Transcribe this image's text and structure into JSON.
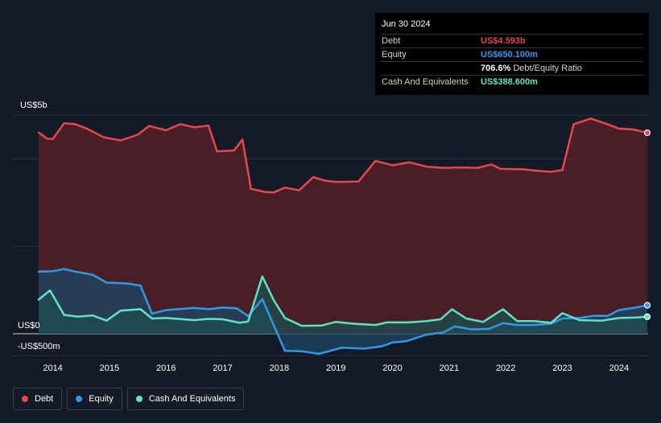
{
  "tooltip": {
    "date": "Jun 30 2024",
    "rows": [
      {
        "label": "Debt",
        "value": "US$4.593b",
        "color": "#e5484d"
      },
      {
        "label": "Equity",
        "value": "US$650.100m",
        "color": "#2f9ae8"
      },
      {
        "label": "",
        "value": "706.6%",
        "suffix": "Debt/Equity Ratio",
        "color": "#ffffff"
      },
      {
        "label": "Cash And Equivalents",
        "value": "US$388.600m",
        "color": "#5fe3c6"
      }
    ]
  },
  "legend": [
    {
      "label": "Debt",
      "color": "#e5484d"
    },
    {
      "label": "Equity",
      "color": "#2f9ae8"
    },
    {
      "label": "Cash And Equivalents",
      "color": "#5fe3c6"
    }
  ],
  "chart_data": {
    "type": "area",
    "x_ticks": [
      "2014",
      "2015",
      "2016",
      "2017",
      "2018",
      "2019",
      "2020",
      "2021",
      "2022",
      "2023",
      "2024"
    ],
    "y_tick_labels": [
      {
        "value": 5000,
        "label": "US$5b"
      },
      {
        "value": 0,
        "label": "US$0"
      },
      {
        "value": -500,
        "label": "-US$500m"
      }
    ],
    "ylim": [
      -500,
      5000
    ],
    "gridlines": [
      5000,
      4000,
      2000,
      0,
      -500
    ],
    "series": [
      {
        "name": "Debt",
        "color": "#e5484d",
        "fill": "#5a2227",
        "points": [
          [
            2013.75,
            4600
          ],
          [
            2013.9,
            4460
          ],
          [
            2014.0,
            4450
          ],
          [
            2014.2,
            4810
          ],
          [
            2014.4,
            4790
          ],
          [
            2014.6,
            4690
          ],
          [
            2014.9,
            4490
          ],
          [
            2015.2,
            4420
          ],
          [
            2015.5,
            4550
          ],
          [
            2015.7,
            4750
          ],
          [
            2016.0,
            4650
          ],
          [
            2016.25,
            4790
          ],
          [
            2016.5,
            4720
          ],
          [
            2016.75,
            4760
          ],
          [
            2016.9,
            4170
          ],
          [
            2017.2,
            4190
          ],
          [
            2017.35,
            4440
          ],
          [
            2017.5,
            3310
          ],
          [
            2017.75,
            3240
          ],
          [
            2017.9,
            3230
          ],
          [
            2018.1,
            3340
          ],
          [
            2018.35,
            3280
          ],
          [
            2018.6,
            3580
          ],
          [
            2018.8,
            3500
          ],
          [
            2019.0,
            3470
          ],
          [
            2019.4,
            3480
          ],
          [
            2019.7,
            3950
          ],
          [
            2020.0,
            3850
          ],
          [
            2020.3,
            3920
          ],
          [
            2020.6,
            3820
          ],
          [
            2020.9,
            3790
          ],
          [
            2021.2,
            3800
          ],
          [
            2021.5,
            3790
          ],
          [
            2021.75,
            3870
          ],
          [
            2021.9,
            3770
          ],
          [
            2022.3,
            3760
          ],
          [
            2022.6,
            3720
          ],
          [
            2022.8,
            3700
          ],
          [
            2023.0,
            3740
          ],
          [
            2023.2,
            4790
          ],
          [
            2023.5,
            4920
          ],
          [
            2023.75,
            4810
          ],
          [
            2024.0,
            4690
          ],
          [
            2024.25,
            4670
          ],
          [
            2024.5,
            4593
          ]
        ]
      },
      {
        "name": "Equity",
        "color": "#2f9ae8",
        "fill": "#1e4866",
        "points": [
          [
            2013.75,
            1420
          ],
          [
            2014.0,
            1430
          ],
          [
            2014.2,
            1480
          ],
          [
            2014.4,
            1420
          ],
          [
            2014.7,
            1350
          ],
          [
            2014.95,
            1170
          ],
          [
            2015.3,
            1150
          ],
          [
            2015.55,
            1100
          ],
          [
            2015.75,
            460
          ],
          [
            2016.0,
            540
          ],
          [
            2016.5,
            590
          ],
          [
            2016.75,
            560
          ],
          [
            2017.0,
            600
          ],
          [
            2017.25,
            580
          ],
          [
            2017.45,
            400
          ],
          [
            2017.7,
            790
          ],
          [
            2017.9,
            200
          ],
          [
            2018.1,
            -390
          ],
          [
            2018.4,
            -400
          ],
          [
            2018.7,
            -460
          ],
          [
            2019.1,
            -320
          ],
          [
            2019.5,
            -340
          ],
          [
            2019.8,
            -290
          ],
          [
            2020.0,
            -200
          ],
          [
            2020.25,
            -170
          ],
          [
            2020.6,
            -20
          ],
          [
            2020.9,
            30
          ],
          [
            2021.1,
            170
          ],
          [
            2021.4,
            100
          ],
          [
            2021.7,
            110
          ],
          [
            2021.95,
            240
          ],
          [
            2022.2,
            200
          ],
          [
            2022.5,
            200
          ],
          [
            2022.8,
            230
          ],
          [
            2023.0,
            350
          ],
          [
            2023.3,
            360
          ],
          [
            2023.55,
            410
          ],
          [
            2023.8,
            410
          ],
          [
            2024.0,
            540
          ],
          [
            2024.3,
            600
          ],
          [
            2024.5,
            650
          ]
        ]
      },
      {
        "name": "Cash And Equivalents",
        "color": "#5fe3c6",
        "fill": "#1d4d4d",
        "points": [
          [
            2013.75,
            780
          ],
          [
            2013.95,
            990
          ],
          [
            2014.2,
            430
          ],
          [
            2014.45,
            390
          ],
          [
            2014.7,
            420
          ],
          [
            2014.95,
            300
          ],
          [
            2015.2,
            530
          ],
          [
            2015.55,
            560
          ],
          [
            2015.75,
            350
          ],
          [
            2016.0,
            360
          ],
          [
            2016.5,
            310
          ],
          [
            2016.75,
            340
          ],
          [
            2017.0,
            330
          ],
          [
            2017.3,
            250
          ],
          [
            2017.45,
            280
          ],
          [
            2017.7,
            1310
          ],
          [
            2017.9,
            770
          ],
          [
            2018.1,
            360
          ],
          [
            2018.4,
            180
          ],
          [
            2018.75,
            190
          ],
          [
            2019.0,
            270
          ],
          [
            2019.3,
            230
          ],
          [
            2019.7,
            200
          ],
          [
            2019.9,
            260
          ],
          [
            2020.3,
            260
          ],
          [
            2020.6,
            290
          ],
          [
            2020.85,
            330
          ],
          [
            2021.05,
            560
          ],
          [
            2021.3,
            350
          ],
          [
            2021.6,
            270
          ],
          [
            2021.95,
            560
          ],
          [
            2022.2,
            290
          ],
          [
            2022.5,
            290
          ],
          [
            2022.8,
            250
          ],
          [
            2023.0,
            470
          ],
          [
            2023.3,
            310
          ],
          [
            2023.7,
            300
          ],
          [
            2024.0,
            360
          ],
          [
            2024.3,
            370
          ],
          [
            2024.5,
            389
          ]
        ]
      }
    ],
    "highlight_x": 2024.5
  }
}
